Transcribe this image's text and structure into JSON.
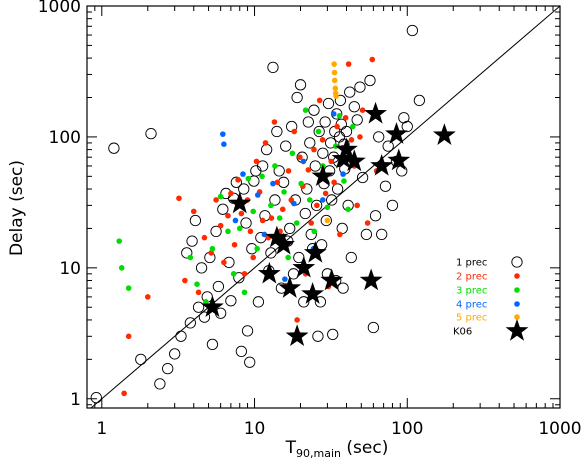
{
  "chart_data": {
    "type": "scatter",
    "xscale": "log",
    "yscale": "log",
    "xlim": [
      0.8,
      1000
    ],
    "ylim": [
      0.85,
      1000
    ],
    "xlabel_main": "T",
    "xlabel_sub": "90,main",
    "xlabel_unit": " (sec)",
    "ylabel": "Delay (sec)",
    "x_ticks": [
      "1",
      "10",
      "100",
      "1000"
    ],
    "y_ticks": [
      "1",
      "10",
      "100",
      "1000"
    ],
    "grid": false,
    "legend_position": "right-middle",
    "reference_line": {
      "slope": 1
    },
    "series": [
      {
        "name": "1 prec",
        "marker": "open-circle",
        "color": "#000000",
        "points": [
          [
            0.92,
            1.02
          ],
          [
            1.2,
            82
          ],
          [
            1.8,
            2.0
          ],
          [
            2.1,
            106
          ],
          [
            2.4,
            1.3
          ],
          [
            2.7,
            1.7
          ],
          [
            3.0,
            2.2
          ],
          [
            3.3,
            3.0
          ],
          [
            3.6,
            13
          ],
          [
            3.8,
            3.8
          ],
          [
            3.9,
            16
          ],
          [
            4.1,
            23
          ],
          [
            4.3,
            5.0
          ],
          [
            4.5,
            10
          ],
          [
            4.7,
            4.2
          ],
          [
            4.9,
            6
          ],
          [
            5.1,
            12
          ],
          [
            5.3,
            2.6
          ],
          [
            5.6,
            19
          ],
          [
            5.8,
            7.2
          ],
          [
            6.0,
            4.5
          ],
          [
            6.2,
            28
          ],
          [
            6.5,
            37
          ],
          [
            6.8,
            11
          ],
          [
            7.0,
            5.6
          ],
          [
            7.3,
            34
          ],
          [
            7.6,
            45
          ],
          [
            7.9,
            8.4
          ],
          [
            8.2,
            2.3
          ],
          [
            8.5,
            40
          ],
          [
            8.8,
            22
          ],
          [
            9.0,
            3.3
          ],
          [
            9.3,
            1.9
          ],
          [
            9.6,
            14
          ],
          [
            9.9,
            46
          ],
          [
            10.2,
            55
          ],
          [
            10.6,
            5.5
          ],
          [
            11.0,
            17
          ],
          [
            11.3,
            60
          ],
          [
            11.7,
            25
          ],
          [
            12.0,
            80
          ],
          [
            12.4,
            9.5
          ],
          [
            12.8,
            13
          ],
          [
            13.2,
            340
          ],
          [
            13.6,
            33
          ],
          [
            14.0,
            110
          ],
          [
            14.5,
            55
          ],
          [
            15.0,
            7
          ],
          [
            15.5,
            45
          ],
          [
            16.0,
            85
          ],
          [
            16.5,
            16
          ],
          [
            17.0,
            20
          ],
          [
            17.5,
            120
          ],
          [
            18.0,
            9
          ],
          [
            18.5,
            33
          ],
          [
            19.0,
            200
          ],
          [
            19.5,
            12
          ],
          [
            20.0,
            250
          ],
          [
            20.5,
            70
          ],
          [
            21.0,
            5.5
          ],
          [
            21.5,
            26
          ],
          [
            22.0,
            40
          ],
          [
            22.5,
            130
          ],
          [
            23.0,
            90
          ],
          [
            23.5,
            18
          ],
          [
            24.0,
            14
          ],
          [
            24.5,
            160
          ],
          [
            25.0,
            60
          ],
          [
            25.5,
            30
          ],
          [
            26.0,
            3.0
          ],
          [
            26.5,
            110
          ],
          [
            27.0,
            5.5
          ],
          [
            27.5,
            15
          ],
          [
            28.0,
            75
          ],
          [
            28.5,
            44
          ],
          [
            29.0,
            130
          ],
          [
            29.5,
            23
          ],
          [
            30.0,
            9
          ],
          [
            30.5,
            180
          ],
          [
            31.0,
            55
          ],
          [
            31.5,
            90
          ],
          [
            32.0,
            33
          ],
          [
            32.5,
            3.1
          ],
          [
            33.0,
            70
          ],
          [
            33.5,
            110
          ],
          [
            34.0,
            8
          ],
          [
            34.5,
            150
          ],
          [
            35.0,
            40
          ],
          [
            35.5,
            65
          ],
          [
            36.0,
            100
          ],
          [
            36.5,
            190
          ],
          [
            37.0,
            125
          ],
          [
            37.5,
            20
          ],
          [
            38.0,
            7
          ],
          [
            38.5,
            88
          ],
          [
            39.0,
            57
          ],
          [
            40.0,
            110
          ],
          [
            41.0,
            30
          ],
          [
            42.0,
            220
          ],
          [
            43.0,
            12
          ],
          [
            45.0,
            170
          ],
          [
            47.0,
            135
          ],
          [
            49.0,
            240
          ],
          [
            51.0,
            49
          ],
          [
            54.0,
            18
          ],
          [
            57.0,
            270
          ],
          [
            60.0,
            3.5
          ],
          [
            62.0,
            25
          ],
          [
            65.0,
            100
          ],
          [
            68.0,
            18
          ],
          [
            72.0,
            42
          ],
          [
            75.0,
            85
          ],
          [
            80.0,
            30
          ],
          [
            85.0,
            65
          ],
          [
            92.0,
            55
          ],
          [
            95.0,
            140
          ],
          [
            100.0,
            120
          ],
          [
            108.0,
            650
          ],
          [
            120.0,
            190
          ]
        ]
      },
      {
        "name": "2 prec",
        "marker": "dot",
        "color": "#ff2a00",
        "points": [
          [
            1.4,
            1.1
          ],
          [
            1.5,
            3.0
          ],
          [
            2.0,
            6
          ],
          [
            3.2,
            34
          ],
          [
            3.5,
            8
          ],
          [
            4.0,
            27
          ],
          [
            4.3,
            6.5
          ],
          [
            4.7,
            17
          ],
          [
            5.2,
            13
          ],
          [
            5.6,
            33
          ],
          [
            6.0,
            21
          ],
          [
            6.3,
            11
          ],
          [
            6.7,
            25
          ],
          [
            7.0,
            37
          ],
          [
            7.4,
            15
          ],
          [
            7.8,
            47
          ],
          [
            8.2,
            26
          ],
          [
            8.6,
            9
          ],
          [
            9.0,
            33
          ],
          [
            9.4,
            19
          ],
          [
            9.8,
            12
          ],
          [
            10.3,
            65
          ],
          [
            10.8,
            38
          ],
          [
            11.3,
            23
          ],
          [
            11.8,
            90
          ],
          [
            12.3,
            17
          ],
          [
            12.9,
            24
          ],
          [
            13.5,
            130
          ],
          [
            14.1,
            45
          ],
          [
            14.7,
            19
          ],
          [
            15.3,
            28
          ],
          [
            16.0,
            7.3
          ],
          [
            16.7,
            55
          ],
          [
            17.4,
            33
          ],
          [
            18.2,
            110
          ],
          [
            19.0,
            4.0
          ],
          [
            19.8,
            70
          ],
          [
            20.7,
            42
          ],
          [
            21.6,
            9
          ],
          [
            22.5,
            56
          ],
          [
            23.5,
            22
          ],
          [
            24.5,
            80
          ],
          [
            25.6,
            30
          ],
          [
            26.7,
            190
          ],
          [
            27.9,
            95
          ],
          [
            29.2,
            37
          ],
          [
            30.5,
            7.2
          ],
          [
            31.8,
            65
          ],
          [
            33.2,
            45
          ],
          [
            34.7,
            120
          ],
          [
            36.2,
            18
          ],
          [
            37.8,
            83
          ],
          [
            39.5,
            140
          ],
          [
            41.3,
            360
          ],
          [
            43.1,
            95
          ],
          [
            45,
            60
          ],
          [
            47,
            30
          ],
          [
            49,
            100
          ],
          [
            51,
            160
          ],
          [
            55,
            22
          ],
          [
            59,
            390
          ],
          [
            63,
            55
          ]
        ]
      },
      {
        "name": "3 prec",
        "marker": "dot",
        "color": "#00dd00",
        "points": [
          [
            1.3,
            16
          ],
          [
            1.35,
            10
          ],
          [
            1.5,
            7
          ],
          [
            3.8,
            12
          ],
          [
            4.2,
            7.5
          ],
          [
            4.8,
            5.5
          ],
          [
            5.3,
            14
          ],
          [
            6.0,
            35
          ],
          [
            6.7,
            19
          ],
          [
            7.3,
            9
          ],
          [
            8.0,
            20
          ],
          [
            8.6,
            6.5
          ],
          [
            9.1,
            48
          ],
          [
            9.8,
            27
          ],
          [
            10.4,
            14
          ],
          [
            11.2,
            50
          ],
          [
            12.0,
            9
          ],
          [
            12.8,
            30
          ],
          [
            13.6,
            60
          ],
          [
            14.6,
            24
          ],
          [
            15.6,
            38
          ],
          [
            16.6,
            12
          ],
          [
            17.7,
            75
          ],
          [
            18.9,
            22
          ],
          [
            20.2,
            44
          ],
          [
            21.6,
            160
          ],
          [
            23.0,
            33
          ],
          [
            24.6,
            19
          ],
          [
            26.2,
            110
          ],
          [
            28,
            60
          ],
          [
            30,
            29
          ],
          [
            32,
            8.5
          ],
          [
            34,
            85
          ],
          [
            36,
            145
          ],
          [
            38.5,
            46
          ],
          [
            41,
            28
          ],
          [
            44,
            120
          ],
          [
            47,
            66
          ]
        ]
      },
      {
        "name": "4 prec",
        "marker": "dot",
        "color": "#0066ff",
        "points": [
          [
            6.2,
            105
          ],
          [
            6.3,
            88
          ],
          [
            7.5,
            23
          ],
          [
            8.4,
            52
          ],
          [
            10.5,
            36
          ],
          [
            11.6,
            18
          ],
          [
            13.2,
            44
          ],
          [
            15.8,
            8.2
          ],
          [
            18.1,
            31
          ],
          [
            20.9,
            65
          ],
          [
            24.3,
            14
          ],
          [
            28,
            33
          ],
          [
            33,
            150
          ],
          [
            38,
            52
          ]
        ]
      },
      {
        "name": "5 prec",
        "marker": "dot",
        "color": "#ffaa00",
        "points": [
          [
            33.2,
            360
          ],
          [
            33.4,
            310
          ],
          [
            33.5,
            270
          ],
          [
            33.8,
            235
          ],
          [
            34.0,
            215
          ],
          [
            34.2,
            205
          ],
          [
            30,
            23
          ]
        ]
      },
      {
        "name": "K06",
        "marker": "star",
        "color": "#000000",
        "points": [
          [
            5.3,
            5.0
          ],
          [
            8.0,
            31
          ],
          [
            12.5,
            9
          ],
          [
            14.0,
            17
          ],
          [
            15.5,
            15
          ],
          [
            17.0,
            7
          ],
          [
            19.0,
            3.0
          ],
          [
            21.0,
            10
          ],
          [
            24.0,
            6.3
          ],
          [
            25.0,
            13
          ],
          [
            28.0,
            50
          ],
          [
            32.0,
            8
          ],
          [
            38.0,
            68
          ],
          [
            40.0,
            80
          ],
          [
            45.0,
            65
          ],
          [
            58.0,
            8
          ],
          [
            62.0,
            150
          ],
          [
            68.0,
            60
          ],
          [
            85.0,
            105
          ],
          [
            88.0,
            66
          ],
          [
            175.0,
            103
          ]
        ]
      }
    ]
  }
}
